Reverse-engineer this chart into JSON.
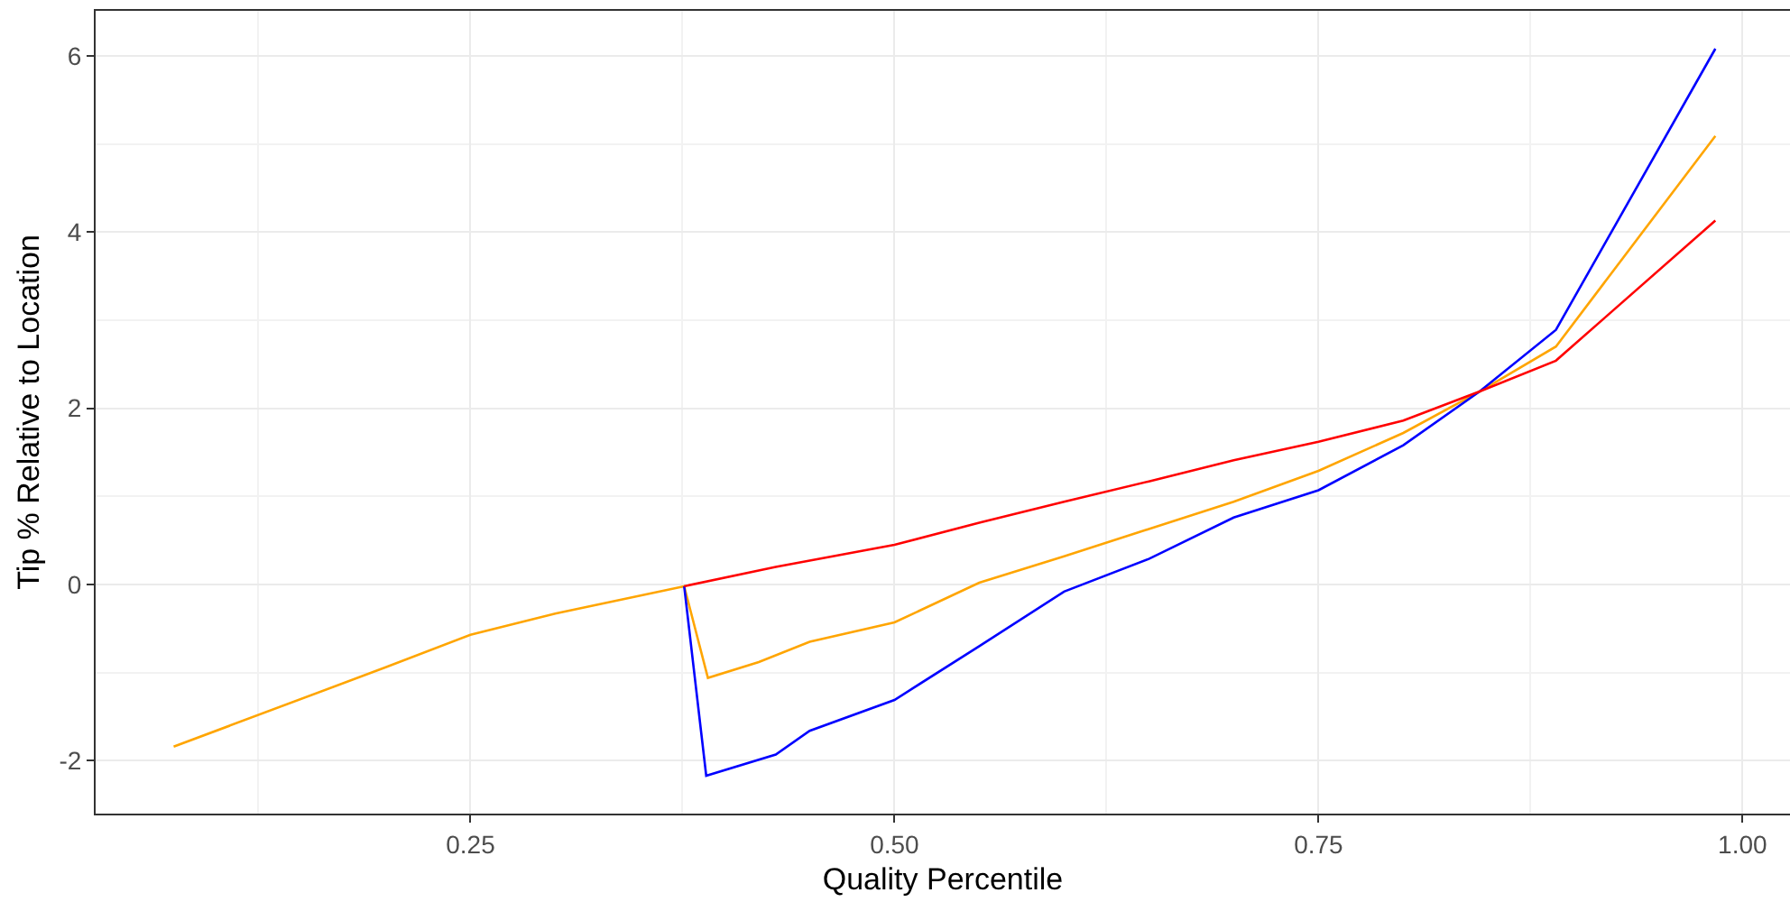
{
  "chart_data": {
    "type": "line",
    "xlabel": "Quality Percentile",
    "ylabel": "Tip % Relative to Location",
    "series": [
      {
        "color": "#ffa500",
        "x": [
          0.075,
          0.2,
          0.25,
          0.3,
          0.376,
          0.39,
          0.42,
          0.45,
          0.5,
          0.55,
          0.6,
          0.65,
          0.7,
          0.75,
          0.8,
          0.845,
          0.89,
          0.984
        ],
        "values": [
          -1.84,
          -0.94,
          -0.57,
          -0.33,
          -0.02,
          -1.06,
          -0.88,
          -0.65,
          -0.43,
          0.02,
          0.32,
          0.63,
          0.94,
          1.29,
          1.72,
          2.19,
          2.7,
          5.09
        ]
      },
      {
        "color": "#0000ff",
        "x": [
          0.376,
          0.389,
          0.43,
          0.45,
          0.5,
          0.55,
          0.6,
          0.65,
          0.7,
          0.75,
          0.8,
          0.845,
          0.89,
          0.984
        ],
        "values": [
          -0.02,
          -2.17,
          -1.93,
          -1.66,
          -1.31,
          -0.7,
          -0.08,
          0.29,
          0.76,
          1.07,
          1.58,
          2.19,
          2.89,
          6.08
        ]
      },
      {
        "color": "#ff0000",
        "x": [
          0.376,
          0.43,
          0.5,
          0.55,
          0.6,
          0.65,
          0.7,
          0.75,
          0.8,
          0.845,
          0.89,
          0.984
        ],
        "values": [
          -0.02,
          0.2,
          0.45,
          0.7,
          0.94,
          1.17,
          1.41,
          1.62,
          1.86,
          2.19,
          2.54,
          4.13
        ]
      }
    ],
    "xlim": [
      0.029,
      1.028
    ],
    "ylim": [
      -2.6,
      6.51
    ],
    "xticks": [
      {
        "value": 0.25,
        "label": "0.25"
      },
      {
        "value": 0.5,
        "label": "0.50"
      },
      {
        "value": 0.75,
        "label": "0.75"
      },
      {
        "value": 1.0,
        "label": "1.00"
      }
    ],
    "yticks": [
      -2,
      0,
      2,
      4,
      6
    ],
    "grid": true,
    "line_style": "solid",
    "marker": "none"
  }
}
